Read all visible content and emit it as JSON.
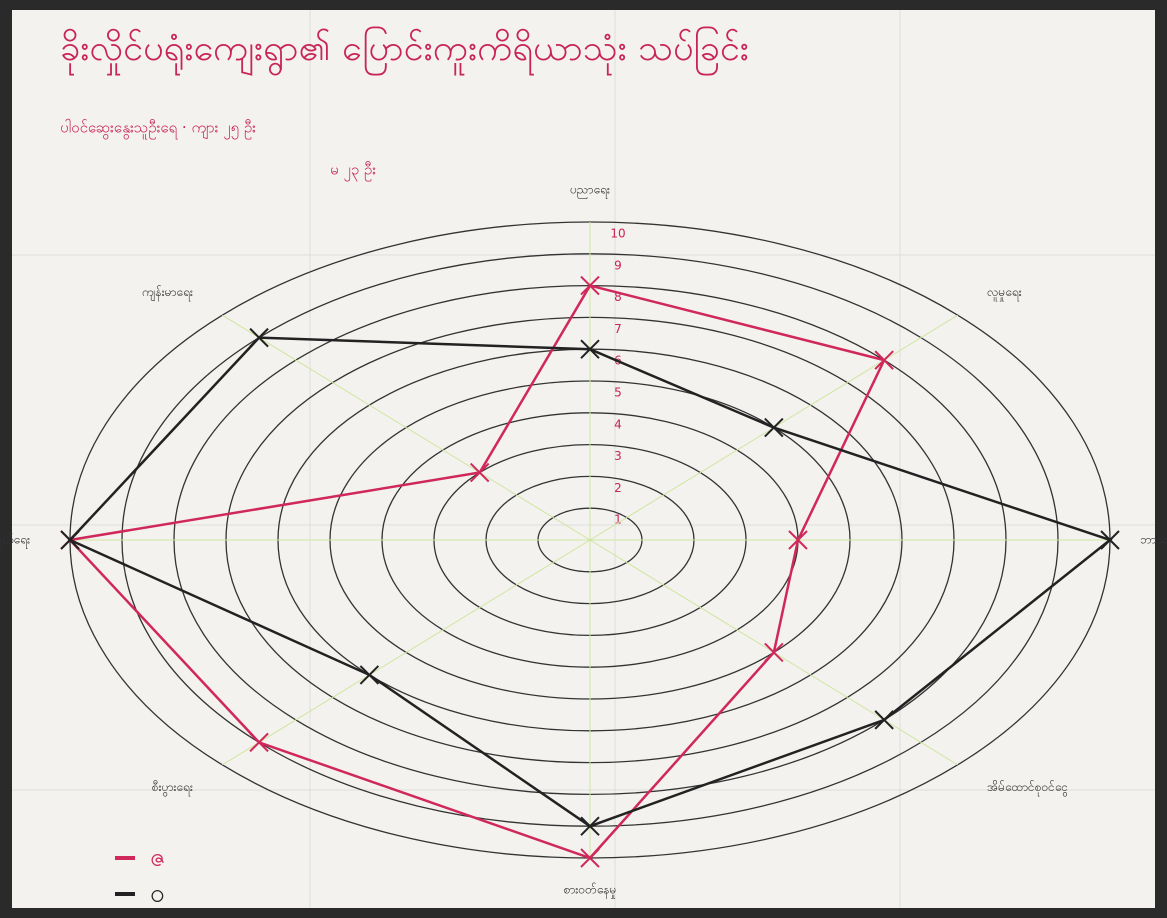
{
  "chart_data": {
    "type": "radar",
    "title": "ခိုးလှိုင်ပရုံးကျေးရွာ၏ ပြောင်းကူးကိရိယာသုံး သပ်ခြင်း",
    "subtitle": [
      "ပါဝင်ဆွေးနွေးသူဦးရေ · ကျား ၂၅ ဦး",
      "မ ၂၃ ဦး"
    ],
    "categories": [
      "ပညာရေး",
      "လူမှုရေး",
      "ဘာသာရေး",
      "အိမ်ထောင်စုဝင်ငွေ",
      "စားဝတ်နေမှု",
      "စီးပွားရေး",
      "ဆက်သွယ်ရေး",
      "ကျန်းမာရေး"
    ],
    "series": [
      {
        "name": "ဇ",
        "color": "#d0285a",
        "values": [
          8,
          8,
          4,
          5,
          10,
          9,
          10,
          3
        ]
      },
      {
        "name": "ဝ",
        "color": "#222222",
        "values": [
          6,
          5,
          10,
          8,
          9,
          6,
          10,
          9
        ]
      }
    ],
    "ylim": [
      0,
      10
    ],
    "yticks": [
      1,
      2,
      3,
      4,
      5,
      6,
      7,
      8,
      9,
      10
    ],
    "grid": true
  }
}
